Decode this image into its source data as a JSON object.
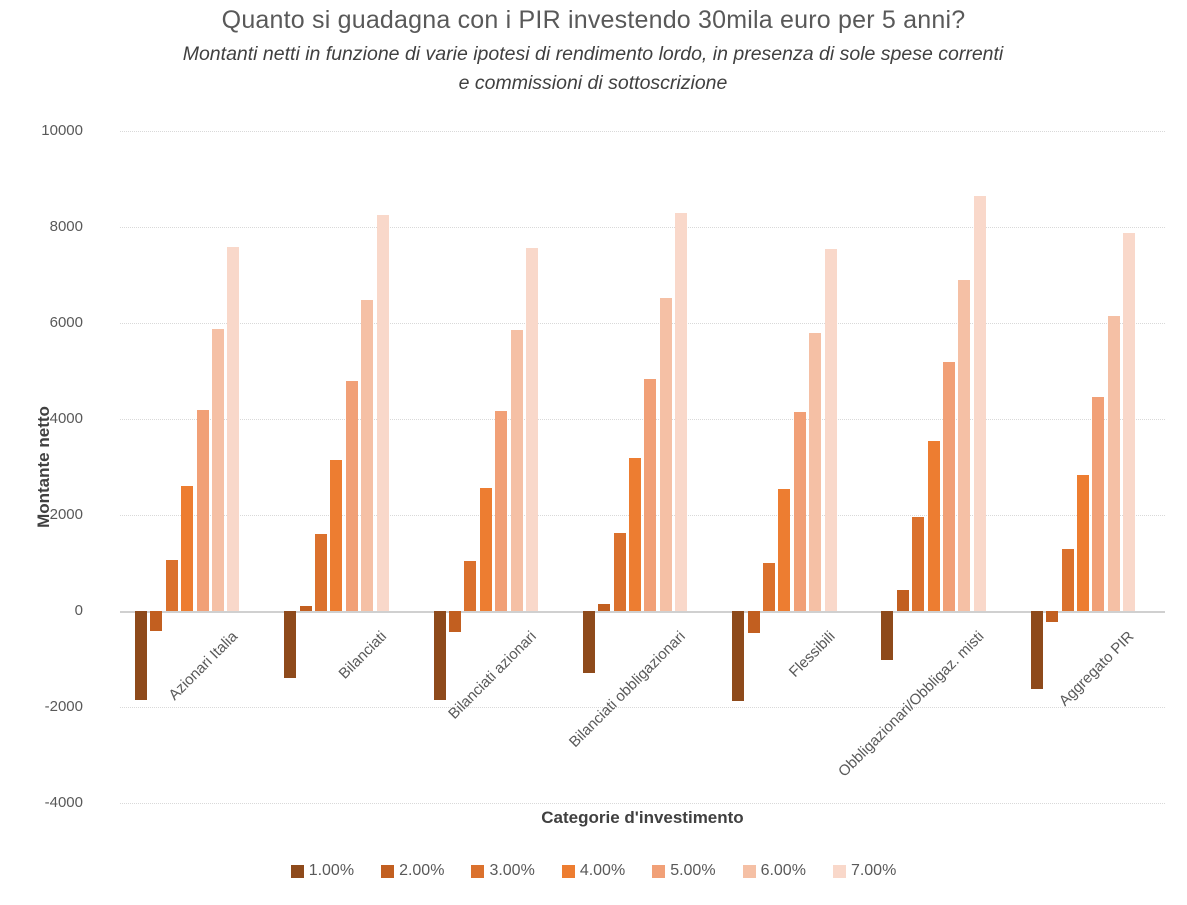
{
  "header": {
    "title": "Quanto si guadagna con i PIR investendo 30mila euro per 5 anni?",
    "subtitle": "Montanti netti in funzione di varie ipotesi di rendimento lordo, in presenza di sole spese correnti  e commissioni di sottoscrizione"
  },
  "chart_data": {
    "type": "bar",
    "title": "Quanto si guadagna con i PIR investendo 30mila euro per 5 anni?",
    "subtitle": "Montanti netti in funzione di varie ipotesi di rendimento lordo, in presenza di sole spese correnti  e commissioni di sottoscrizione",
    "xlabel": "Categorie d'investimento",
    "ylabel": "Montante netto",
    "ylim": [
      -4000,
      10000
    ],
    "ytick_step": 2000,
    "ytick_labels": [
      "10000",
      "8000",
      "6000",
      "4000",
      "2000",
      "0",
      "-2000",
      "-4000"
    ],
    "grid": "horizontal-dotted",
    "legend_position": "bottom",
    "categories": [
      "Azionari Italia",
      "Bilanciati",
      "Bilanciati azionari",
      "Bilanciati obbligazionari",
      "Flessibili",
      "Obbligazionari/Obbligaz. misti",
      "Aggregato PIR"
    ],
    "series": [
      {
        "name": "1.00%",
        "color": "#8E4A1B",
        "values": [
          -1860,
          -1390,
          -1850,
          -1300,
          -1880,
          -1020,
          -1630
        ]
      },
      {
        "name": "2.00%",
        "color": "#C25F20",
        "values": [
          -420,
          110,
          -430,
          140,
          -460,
          440,
          -220
        ]
      },
      {
        "name": "3.00%",
        "color": "#DB712D",
        "values": [
          1060,
          1600,
          1040,
          1630,
          1000,
          1950,
          1300
        ]
      },
      {
        "name": "4.00%",
        "color": "#ED7D31",
        "values": [
          2600,
          3150,
          2570,
          3190,
          2540,
          3540,
          2840
        ]
      },
      {
        "name": "5.00%",
        "color": "#F1A077",
        "values": [
          4190,
          4800,
          4170,
          4840,
          4150,
          5180,
          4450
        ]
      },
      {
        "name": "6.00%",
        "color": "#F5C0A5",
        "values": [
          5870,
          6480,
          5850,
          6530,
          5800,
          6900,
          6140
        ]
      },
      {
        "name": "7.00%",
        "color": "#F9D8CA",
        "values": [
          7580,
          8250,
          7570,
          8300,
          7540,
          8650,
          7880
        ]
      }
    ]
  }
}
